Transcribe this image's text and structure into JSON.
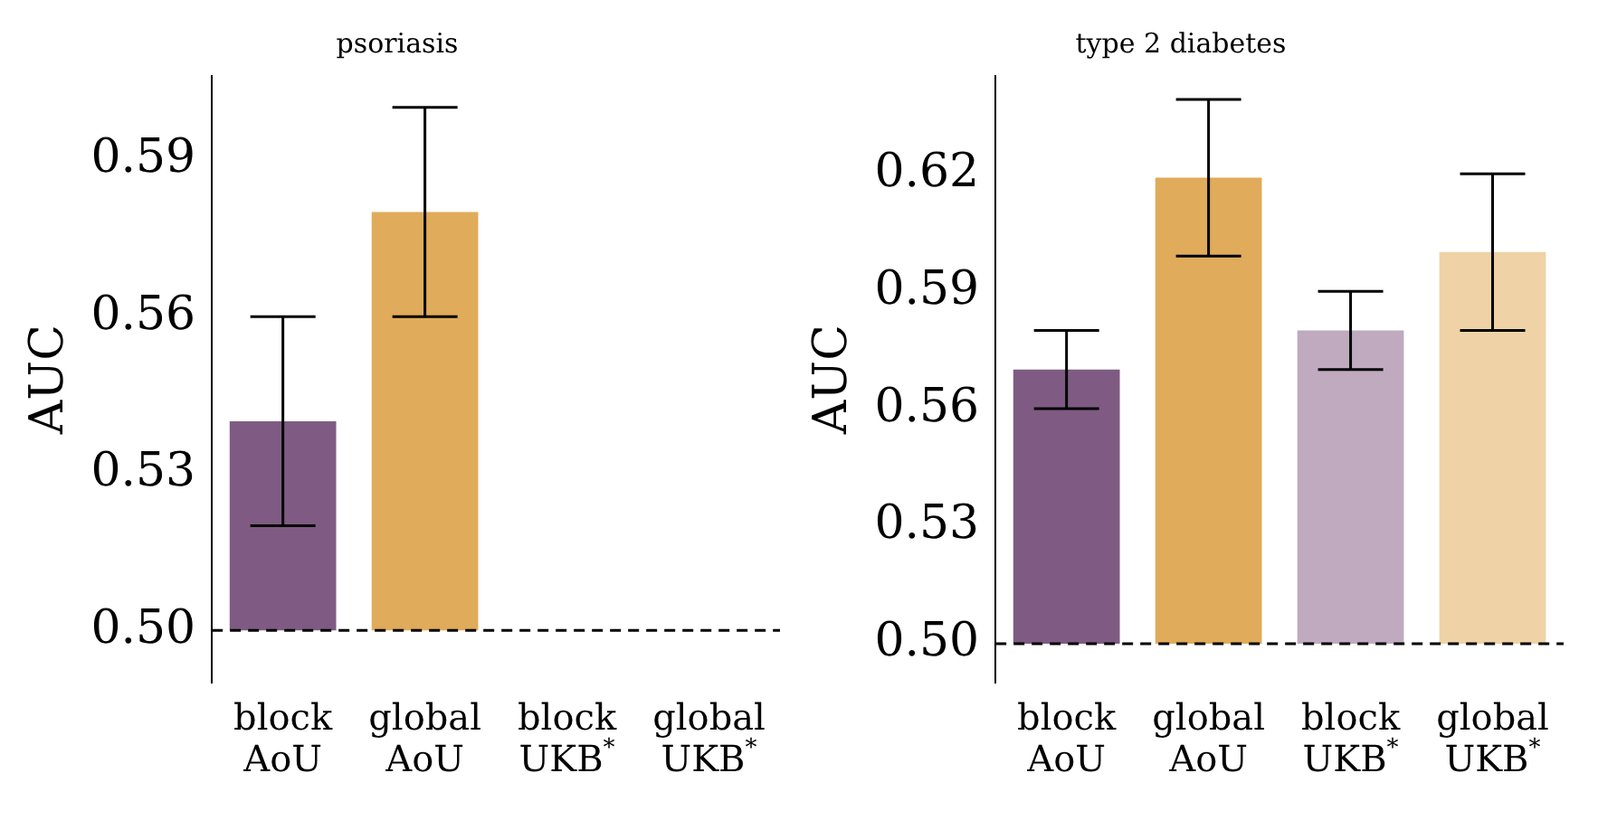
{
  "chart_data": [
    {
      "type": "bar",
      "title": "psoriasis",
      "ylabel": "AUC",
      "categories": [
        "block AoU",
        "global AoU",
        "block UKB$^{*}$",
        "global UKB$^{*}$"
      ],
      "values": [
        0.04,
        0.08,
        null,
        null
      ],
      "base": [
        0.5,
        0.5,
        null,
        null
      ],
      "colors": [
        "#7f5b83",
        "#e0ab5a",
        "#bfaac0",
        "#efd3a6"
      ],
      "errors": [
        [
          0.52,
          0.56
        ],
        [
          0.56,
          0.6
        ],
        null,
        null
      ],
      "ylim": [
        0.49,
        0.606
      ],
      "yticks": [
        {
          "value": 0.5,
          "label": "0.50"
        },
        0.53,
        0.56,
        0.59
      ],
      "ref_lines": [
        {
          "axis": "y",
          "value": 0.5,
          "color": "#000000",
          "line_style": "dashed"
        }
      ],
      "grid": false,
      "legend": false
    },
    {
      "type": "bar",
      "title": "type 2 diabetes",
      "ylabel": "AUC",
      "categories": [
        "block AoU",
        "global AoU",
        "block UKB$^{*}$",
        "global UKB$^{*}$"
      ],
      "values": [
        0.07,
        0.119,
        0.08,
        0.1
      ],
      "base": [
        0.5,
        0.5,
        0.5,
        0.5
      ],
      "colors": [
        "#7f5b83",
        "#e0ab5a",
        "#bfaac0",
        "#efd3a6"
      ],
      "errors": [
        [
          0.56,
          0.58
        ],
        [
          0.599,
          0.639
        ],
        [
          0.57,
          0.59
        ],
        [
          0.58,
          0.62
        ]
      ],
      "ylim": [
        0.49,
        0.645
      ],
      "yticks": [
        {
          "value": 0.5,
          "label": "0.50"
        },
        0.53,
        0.56,
        0.59,
        0.62
      ],
      "ref_lines": [
        {
          "axis": "y",
          "value": 0.5,
          "color": "#000000",
          "line_style": "dashed"
        }
      ],
      "grid": false,
      "legend": false
    }
  ]
}
